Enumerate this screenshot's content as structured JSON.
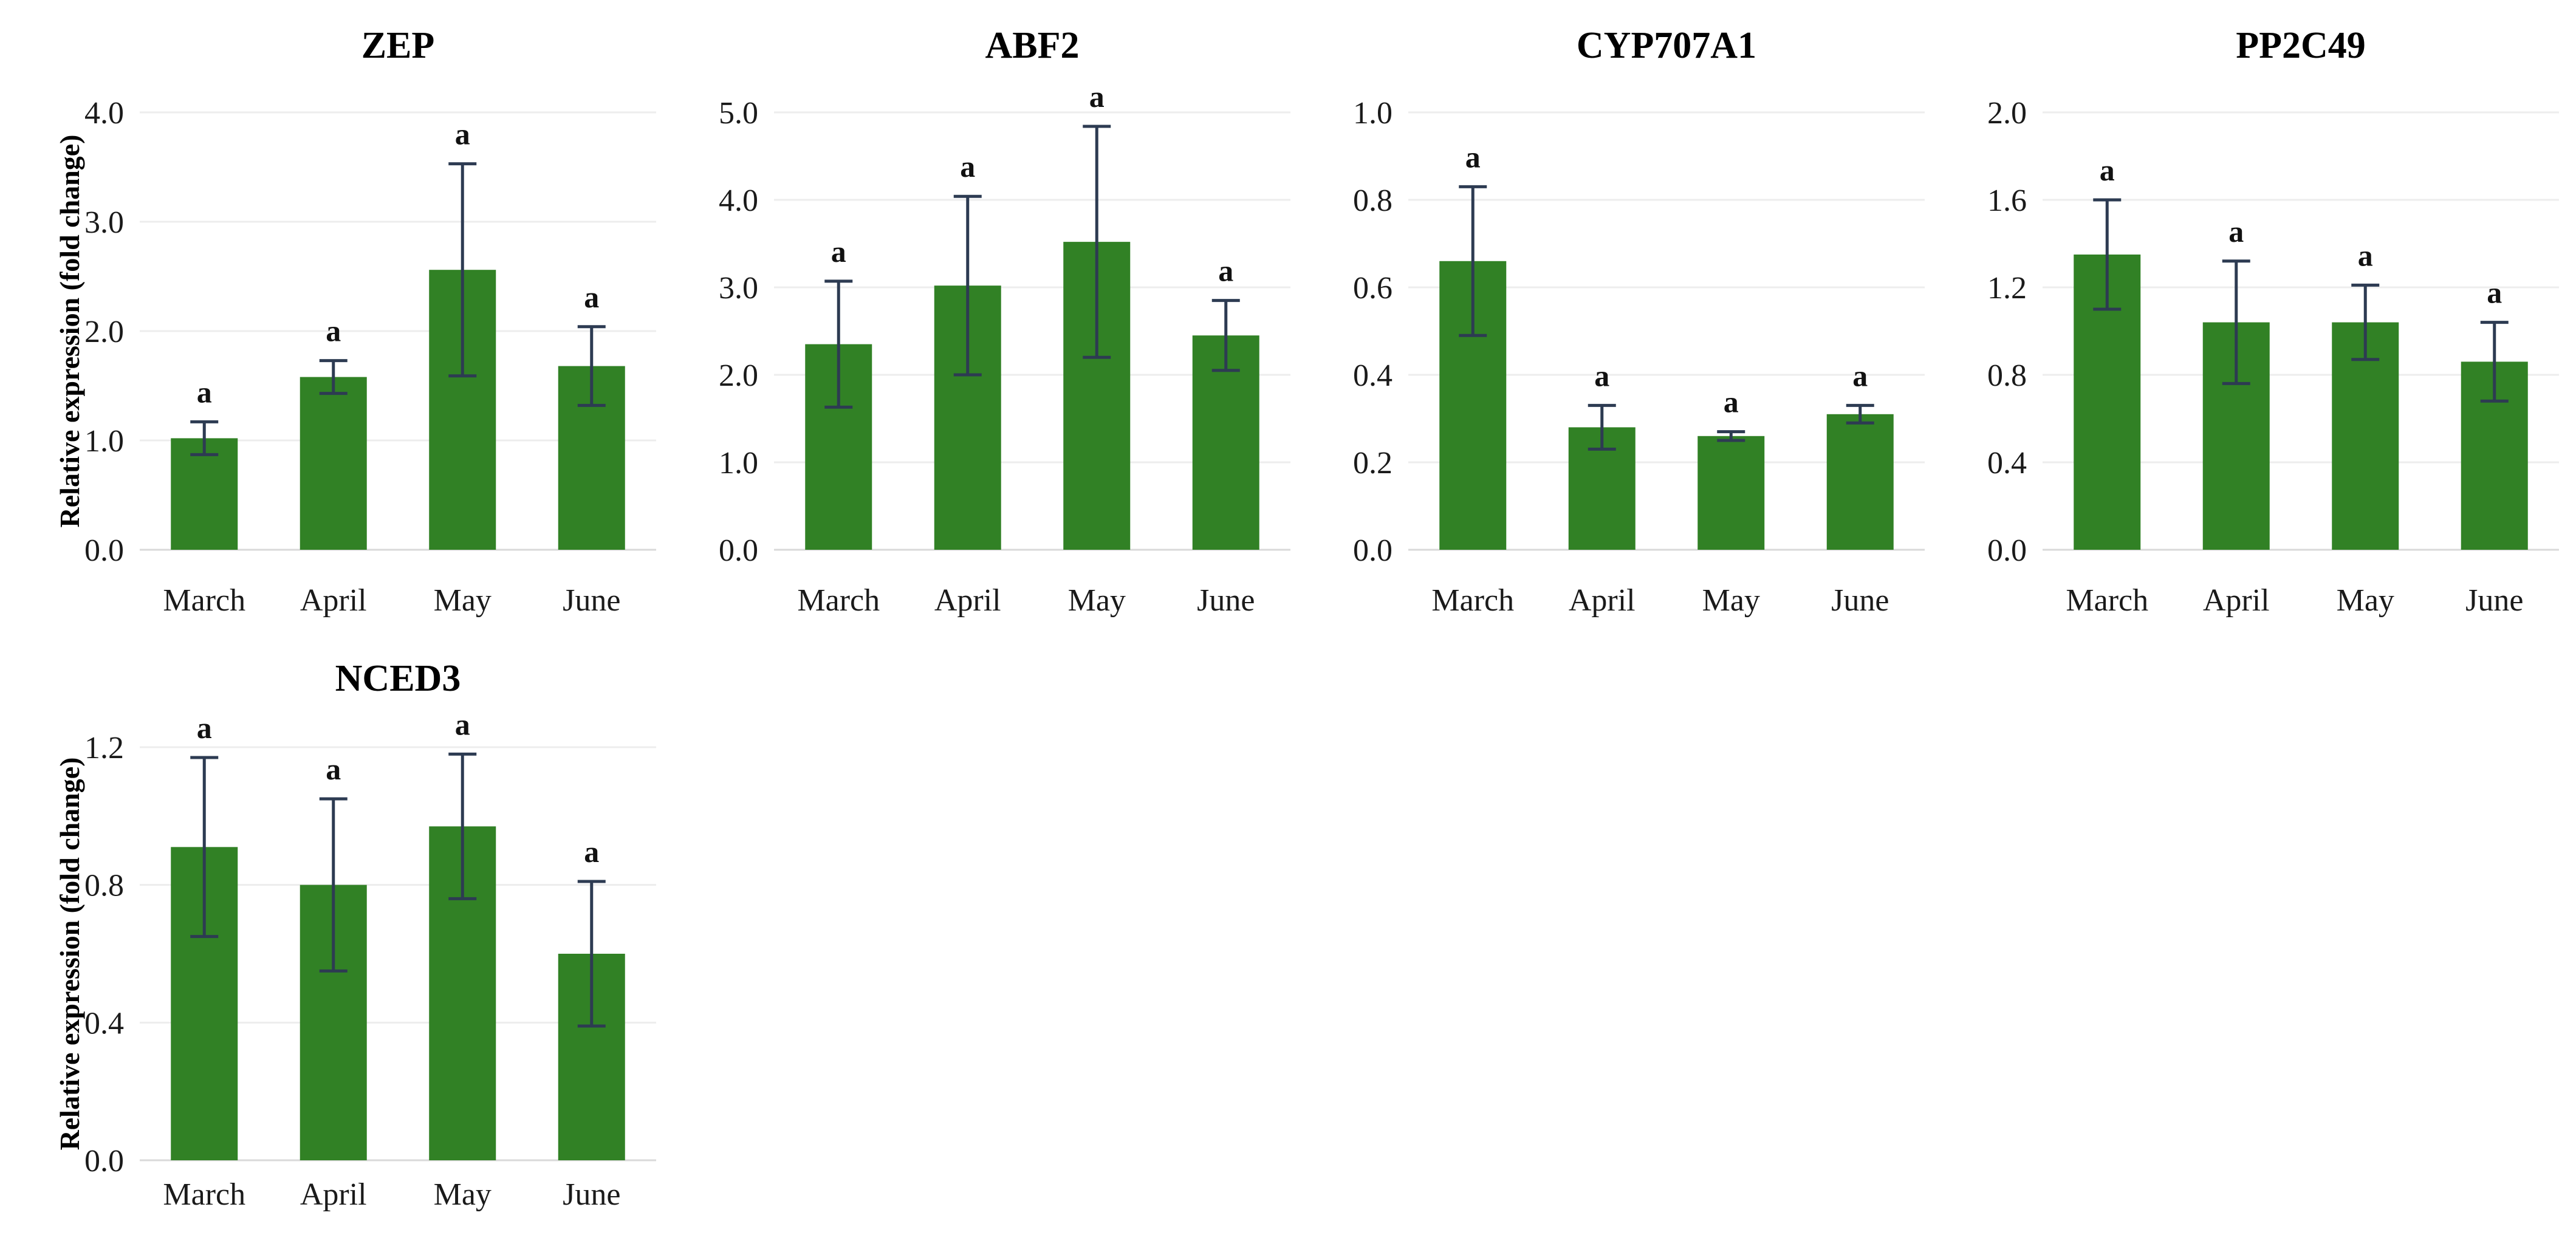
{
  "figure": {
    "y_axis_label": "Relative expression (fold change)",
    "months": [
      "March",
      "April",
      "May",
      "June"
    ],
    "significance_letter": "a",
    "colors": {
      "background": "#FFFFFF",
      "bar": "#318125",
      "error_bar": "#2D3B52",
      "gridline": "#EDEDED",
      "axis_line": "#D9D9D9",
      "tick_text": "#1A1A1A",
      "title_text": "#000000"
    }
  },
  "chart_data": [
    {
      "type": "bar",
      "title": "ZEP",
      "categories": [
        "March",
        "April",
        "May",
        "June"
      ],
      "values": [
        1.02,
        1.58,
        2.56,
        1.68
      ],
      "error_bars": [
        0.15,
        0.15,
        0.97,
        0.36
      ],
      "bar_labels": [
        "a",
        "a",
        "a",
        "a"
      ],
      "xlabel": "",
      "ylabel": "Relative expression (fold change)",
      "show_ylabel": true,
      "ylim": [
        0.0,
        4.0
      ],
      "yticks": [
        0.0,
        1.0,
        2.0,
        3.0,
        4.0
      ],
      "grid": true,
      "legend": "none"
    },
    {
      "type": "bar",
      "title": "ABF2",
      "categories": [
        "March",
        "April",
        "May",
        "June"
      ],
      "values": [
        2.35,
        3.02,
        3.52,
        2.45
      ],
      "error_bars": [
        0.72,
        1.02,
        1.32,
        0.4
      ],
      "bar_labels": [
        "a",
        "a",
        "a",
        "a"
      ],
      "xlabel": "",
      "show_ylabel": false,
      "ylim": [
        0.0,
        5.0
      ],
      "yticks": [
        0.0,
        1.0,
        2.0,
        3.0,
        4.0,
        5.0
      ],
      "grid": true,
      "legend": "none"
    },
    {
      "type": "bar",
      "title": "CYP707A1",
      "categories": [
        "March",
        "April",
        "May",
        "June"
      ],
      "values": [
        0.66,
        0.28,
        0.26,
        0.31
      ],
      "error_bars": [
        0.17,
        0.05,
        0.01,
        0.02
      ],
      "bar_labels": [
        "a",
        "a",
        "a",
        "a"
      ],
      "xlabel": "",
      "show_ylabel": false,
      "ylim": [
        0.0,
        1.0
      ],
      "yticks": [
        0.0,
        0.2,
        0.4,
        0.6,
        0.8,
        1.0
      ],
      "grid": true,
      "legend": "none"
    },
    {
      "type": "bar",
      "title": "PP2C49",
      "categories": [
        "March",
        "April",
        "May",
        "June"
      ],
      "values": [
        1.35,
        1.04,
        1.04,
        0.86
      ],
      "error_bars": [
        0.25,
        0.28,
        0.17,
        0.18
      ],
      "bar_labels": [
        "a",
        "a",
        "a",
        "a"
      ],
      "xlabel": "",
      "show_ylabel": false,
      "ylim": [
        0.0,
        2.0
      ],
      "yticks": [
        0.0,
        0.4,
        0.8,
        1.2,
        1.6,
        2.0
      ],
      "grid": true,
      "legend": "none"
    },
    {
      "type": "bar",
      "title": "NCED3",
      "categories": [
        "March",
        "April",
        "May",
        "June"
      ],
      "values": [
        0.91,
        0.8,
        0.97,
        0.6
      ],
      "error_bars": [
        0.26,
        0.25,
        0.21,
        0.21
      ],
      "bar_labels": [
        "a",
        "a",
        "a",
        "a"
      ],
      "xlabel": "",
      "ylabel": "Relative expression (fold change)",
      "show_ylabel": true,
      "ylim": [
        0.0,
        1.2
      ],
      "yticks": [
        0.0,
        0.4,
        0.8,
        1.2
      ],
      "grid": true,
      "legend": "none"
    }
  ]
}
